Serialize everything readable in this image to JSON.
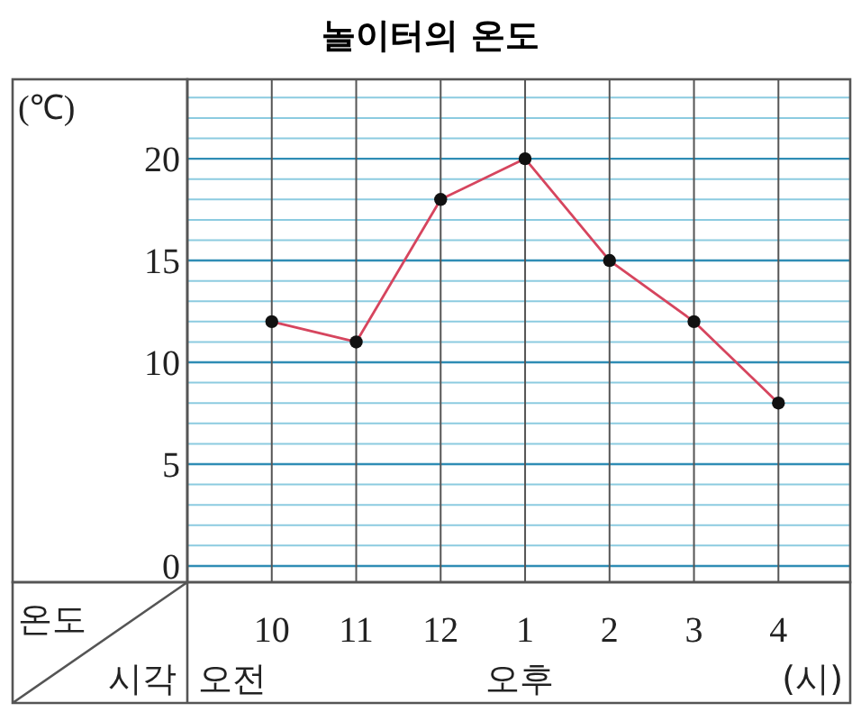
{
  "chart_data": {
    "type": "line",
    "title": "놀이터의 온도",
    "ylabel": "(℃)",
    "xlabel": "시각",
    "annotations": [
      "온도",
      "오전",
      "오후",
      "(시)"
    ],
    "categories": [
      "10",
      "11",
      "12",
      "1",
      "2",
      "3",
      "4"
    ],
    "series": [
      {
        "color": "#d6455e",
        "values": [
          12,
          11,
          18,
          20,
          15,
          12,
          8
        ]
      }
    ],
    "ylim": [
      -0.8,
      23.9
    ],
    "yticks": [
      0,
      {
        "value": 1,
        "label": null
      },
      {
        "value": 2,
        "label": null
      },
      {
        "value": 3,
        "label": null
      },
      {
        "value": 4,
        "label": null
      },
      5,
      {
        "value": 6,
        "label": null
      },
      {
        "value": 7,
        "label": null
      },
      {
        "value": 8,
        "label": null
      },
      {
        "value": 9,
        "label": null
      },
      10,
      {
        "value": 11,
        "label": null
      },
      {
        "value": 12,
        "label": null
      },
      {
        "value": 13,
        "label": null
      },
      {
        "value": 14,
        "label": null
      },
      15,
      {
        "value": 16,
        "label": null
      },
      {
        "value": 17,
        "label": null
      },
      {
        "value": 18,
        "label": null
      },
      {
        "value": 19,
        "label": null
      },
      20,
      {
        "value": 21,
        "label": null
      },
      {
        "value": 22,
        "label": null
      },
      {
        "value": 23,
        "label": null
      }
    ],
    "grid": true,
    "marker": "circle"
  }
}
